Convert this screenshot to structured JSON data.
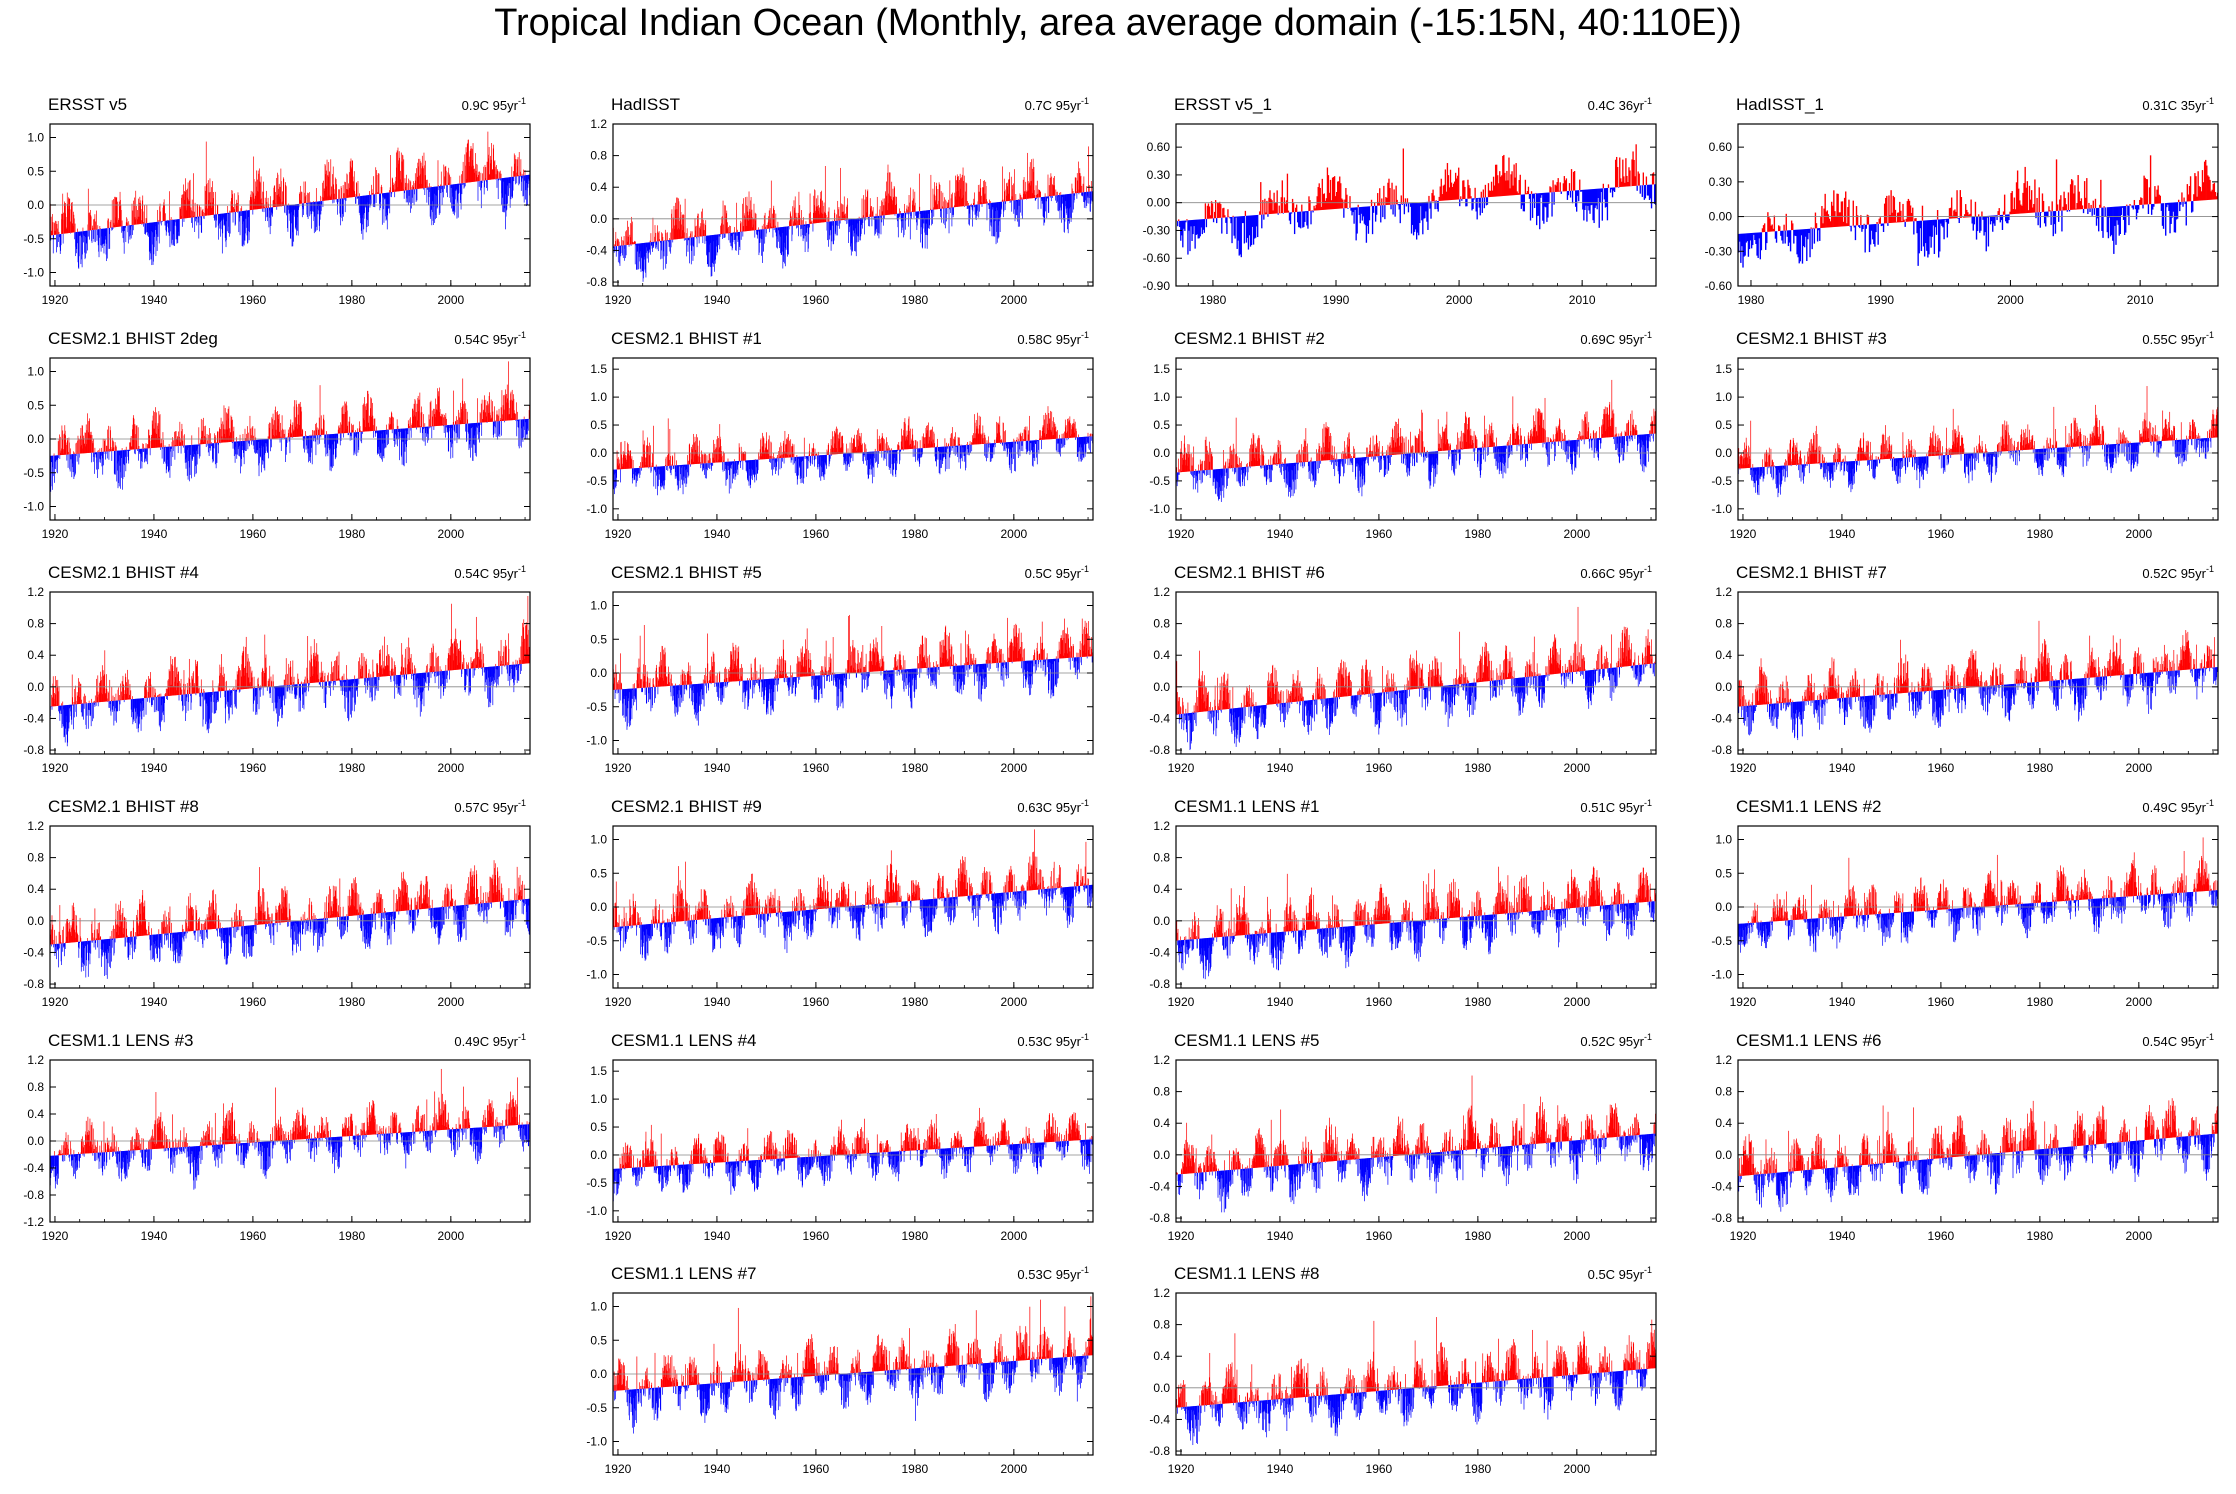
{
  "title": "Tropical Indian Ocean (Monthly, area average domain (-15:15N, 40:110E))",
  "colors": {
    "positive": "#ff0000",
    "negative": "#0000ff",
    "reference": "#000000",
    "frame": "#000000"
  },
  "chart_data": [
    {
      "type": "bar",
      "name": "ERSST v5",
      "trend": "0.9C 95yr",
      "x_range": [
        1919,
        2016
      ],
      "ylim": [
        -1.2,
        1.2
      ],
      "yticks": [
        -1.0,
        -0.5,
        0.0,
        0.5,
        1.0
      ],
      "ytick_labels": [
        "-1.0",
        "-0.5",
        "0.0",
        "0.5",
        "1.0"
      ],
      "xticks": [
        1920,
        1940,
        1960,
        1980,
        2000
      ],
      "trend_line": [
        -0.45,
        0.45
      ],
      "amplitude": 0.5,
      "seed": 1
    },
    {
      "type": "bar",
      "name": "HadISST",
      "trend": "0.7C 95yr",
      "x_range": [
        1919,
        2016
      ],
      "ylim": [
        -0.85,
        1.2
      ],
      "yticks": [
        -0.8,
        -0.4,
        0.0,
        0.4,
        0.8,
        1.2
      ],
      "ytick_labels": [
        "-0.8",
        "-0.4",
        "0.0",
        "0.4",
        "0.8",
        "1.2"
      ],
      "xticks": [
        1920,
        1940,
        1960,
        1980,
        2000
      ],
      "trend_line": [
        -0.35,
        0.35
      ],
      "amplitude": 0.4,
      "seed": 2
    },
    {
      "type": "bar",
      "name": "ERSST v5_1",
      "trend": "0.4C 36yr",
      "x_range": [
        1977,
        2016
      ],
      "ylim": [
        -0.9,
        0.85
      ],
      "yticks": [
        -0.9,
        -0.6,
        -0.3,
        0.0,
        0.3,
        0.6
      ],
      "ytick_labels": [
        "-0.90",
        "-0.60",
        "-0.30",
        "0.00",
        "0.30",
        "0.60"
      ],
      "xticks": [
        1980,
        1990,
        2000,
        2010
      ],
      "trend_line": [
        -0.2,
        0.2
      ],
      "amplitude": 0.35,
      "seed": 3
    },
    {
      "type": "bar",
      "name": "HadISST_1",
      "trend": "0.31C 35yr",
      "x_range": [
        1979,
        2016
      ],
      "ylim": [
        -0.6,
        0.8
      ],
      "yticks": [
        -0.6,
        -0.3,
        0.0,
        0.3,
        0.6
      ],
      "ytick_labels": [
        "-0.60",
        "-0.30",
        "0.00",
        "0.30",
        "0.60"
      ],
      "xticks": [
        1980,
        1990,
        2000,
        2010
      ],
      "trend_line": [
        -0.15,
        0.15
      ],
      "amplitude": 0.3,
      "seed": 4
    },
    {
      "type": "bar",
      "name": "CESM2.1 BHIST 2deg",
      "trend": "0.54C 95yr",
      "x_range": [
        1919,
        2016
      ],
      "ylim": [
        -1.2,
        1.2
      ],
      "yticks": [
        -1.0,
        -0.5,
        0.0,
        0.5,
        1.0
      ],
      "ytick_labels": [
        "-1.0",
        "-0.5",
        "0.0",
        "0.5",
        "1.0"
      ],
      "xticks": [
        1920,
        1940,
        1960,
        1980,
        2000
      ],
      "trend_line": [
        -0.25,
        0.3
      ],
      "amplitude": 0.45,
      "seed": 5
    },
    {
      "type": "bar",
      "name": "CESM2.1 BHIST #1",
      "trend": "0.58C 95yr",
      "x_range": [
        1919,
        2016
      ],
      "ylim": [
        -1.2,
        1.7
      ],
      "yticks": [
        -1.0,
        -0.5,
        0.0,
        0.5,
        1.0,
        1.5
      ],
      "ytick_labels": [
        "-1.0",
        "-0.5",
        "0.0",
        "0.5",
        "1.0",
        "1.5"
      ],
      "xticks": [
        1920,
        1940,
        1960,
        1980,
        2000
      ],
      "trend_line": [
        -0.3,
        0.3
      ],
      "amplitude": 0.45,
      "seed": 6
    },
    {
      "type": "bar",
      "name": "CESM2.1 BHIST #2",
      "trend": "0.69C 95yr",
      "x_range": [
        1919,
        2016
      ],
      "ylim": [
        -1.2,
        1.7
      ],
      "yticks": [
        -1.0,
        -0.5,
        0.0,
        0.5,
        1.0,
        1.5
      ],
      "ytick_labels": [
        "-1.0",
        "-0.5",
        "0.0",
        "0.5",
        "1.0",
        "1.5"
      ],
      "xticks": [
        1920,
        1940,
        1960,
        1980,
        2000
      ],
      "trend_line": [
        -0.35,
        0.35
      ],
      "amplitude": 0.5,
      "seed": 7
    },
    {
      "type": "bar",
      "name": "CESM2.1 BHIST #3",
      "trend": "0.55C 95yr",
      "x_range": [
        1919,
        2016
      ],
      "ylim": [
        -1.2,
        1.7
      ],
      "yticks": [
        -1.0,
        -0.5,
        0.0,
        0.5,
        1.0,
        1.5
      ],
      "ytick_labels": [
        "-1.0",
        "-0.5",
        "0.0",
        "0.5",
        "1.0",
        "1.5"
      ],
      "xticks": [
        1920,
        1940,
        1960,
        1980,
        2000
      ],
      "trend_line": [
        -0.28,
        0.28
      ],
      "amplitude": 0.45,
      "seed": 8
    },
    {
      "type": "bar",
      "name": "CESM2.1 BHIST #4",
      "trend": "0.54C 95yr",
      "x_range": [
        1919,
        2016
      ],
      "ylim": [
        -0.85,
        1.2
      ],
      "yticks": [
        -0.8,
        -0.4,
        0.0,
        0.4,
        0.8,
        1.2
      ],
      "ytick_labels": [
        "-0.8",
        "-0.4",
        "0.0",
        "0.4",
        "0.8",
        "1.2"
      ],
      "xticks": [
        1920,
        1940,
        1960,
        1980,
        2000
      ],
      "trend_line": [
        -0.25,
        0.3
      ],
      "amplitude": 0.4,
      "seed": 9
    },
    {
      "type": "bar",
      "name": "CESM2.1 BHIST #5",
      "trend": "0.5C 95yr",
      "x_range": [
        1919,
        2016
      ],
      "ylim": [
        -1.2,
        1.2
      ],
      "yticks": [
        -1.0,
        -0.5,
        0.0,
        0.5,
        1.0
      ],
      "ytick_labels": [
        "-1.0",
        "-0.5",
        "0.0",
        "0.5",
        "1.0"
      ],
      "xticks": [
        1920,
        1940,
        1960,
        1980,
        2000
      ],
      "trend_line": [
        -0.25,
        0.25
      ],
      "amplitude": 0.45,
      "seed": 10
    },
    {
      "type": "bar",
      "name": "CESM2.1 BHIST #6",
      "trend": "0.66C 95yr",
      "x_range": [
        1919,
        2016
      ],
      "ylim": [
        -0.85,
        1.2
      ],
      "yticks": [
        -0.8,
        -0.4,
        0.0,
        0.4,
        0.8,
        1.2
      ],
      "ytick_labels": [
        "-0.8",
        "-0.4",
        "0.0",
        "0.4",
        "0.8",
        "1.2"
      ],
      "xticks": [
        1920,
        1940,
        1960,
        1980,
        2000
      ],
      "trend_line": [
        -0.35,
        0.3
      ],
      "amplitude": 0.4,
      "seed": 11
    },
    {
      "type": "bar",
      "name": "CESM2.1 BHIST #7",
      "trend": "0.52C 95yr",
      "x_range": [
        1919,
        2016
      ],
      "ylim": [
        -0.85,
        1.2
      ],
      "yticks": [
        -0.8,
        -0.4,
        0.0,
        0.4,
        0.8,
        1.2
      ],
      "ytick_labels": [
        "-0.8",
        "-0.4",
        "0.0",
        "0.4",
        "0.8",
        "1.2"
      ],
      "xticks": [
        1920,
        1940,
        1960,
        1980,
        2000
      ],
      "trend_line": [
        -0.25,
        0.25
      ],
      "amplitude": 0.4,
      "seed": 12
    },
    {
      "type": "bar",
      "name": "CESM2.1 BHIST #8",
      "trend": "0.57C 95yr",
      "x_range": [
        1919,
        2016
      ],
      "ylim": [
        -0.85,
        1.2
      ],
      "yticks": [
        -0.8,
        -0.4,
        0.0,
        0.4,
        0.8,
        1.2
      ],
      "ytick_labels": [
        "-0.8",
        "-0.4",
        "0.0",
        "0.4",
        "0.8",
        "1.2"
      ],
      "xticks": [
        1920,
        1940,
        1960,
        1980,
        2000
      ],
      "trend_line": [
        -0.3,
        0.28
      ],
      "amplitude": 0.4,
      "seed": 13
    },
    {
      "type": "bar",
      "name": "CESM2.1 BHIST #9",
      "trend": "0.63C 95yr",
      "x_range": [
        1919,
        2016
      ],
      "ylim": [
        -1.2,
        1.2
      ],
      "yticks": [
        -1.0,
        -0.5,
        0.0,
        0.5,
        1.0
      ],
      "ytick_labels": [
        "-1.0",
        "-0.5",
        "0.0",
        "0.5",
        "1.0"
      ],
      "xticks": [
        1920,
        1940,
        1960,
        1980,
        2000
      ],
      "trend_line": [
        -0.3,
        0.33
      ],
      "amplitude": 0.45,
      "seed": 14
    },
    {
      "type": "bar",
      "name": "CESM1.1 LENS #1",
      "trend": "0.51C 95yr",
      "x_range": [
        1919,
        2016
      ],
      "ylim": [
        -0.85,
        1.2
      ],
      "yticks": [
        -0.8,
        -0.4,
        0.0,
        0.4,
        0.8,
        1.2
      ],
      "ytick_labels": [
        "-0.8",
        "-0.4",
        "0.0",
        "0.4",
        "0.8",
        "1.2"
      ],
      "xticks": [
        1920,
        1940,
        1960,
        1980,
        2000
      ],
      "trend_line": [
        -0.25,
        0.25
      ],
      "amplitude": 0.4,
      "seed": 15
    },
    {
      "type": "bar",
      "name": "CESM1.1 LENS #2",
      "trend": "0.49C 95yr",
      "x_range": [
        1919,
        2016
      ],
      "ylim": [
        -1.2,
        1.2
      ],
      "yticks": [
        -1.0,
        -0.5,
        0.0,
        0.5,
        1.0
      ],
      "ytick_labels": [
        "-1.0",
        "-0.5",
        "0.0",
        "0.5",
        "1.0"
      ],
      "xticks": [
        1920,
        1940,
        1960,
        1980,
        2000
      ],
      "trend_line": [
        -0.25,
        0.25
      ],
      "amplitude": 0.4,
      "seed": 16
    },
    {
      "type": "bar",
      "name": "CESM1.1 LENS #3",
      "trend": "0.49C 95yr",
      "x_range": [
        1919,
        2016
      ],
      "ylim": [
        -1.2,
        1.2
      ],
      "yticks": [
        -1.2,
        -0.8,
        -0.4,
        0.0,
        0.4,
        0.8,
        1.2
      ],
      "ytick_labels": [
        "-1.2",
        "-0.8",
        "-0.4",
        "0.0",
        "0.4",
        "0.8",
        "1.2"
      ],
      "xticks": [
        1920,
        1940,
        1960,
        1980,
        2000
      ],
      "trend_line": [
        -0.22,
        0.25
      ],
      "amplitude": 0.4,
      "seed": 17
    },
    {
      "type": "bar",
      "name": "CESM1.1 LENS #4",
      "trend": "0.53C 95yr",
      "x_range": [
        1919,
        2016
      ],
      "ylim": [
        -1.2,
        1.7
      ],
      "yticks": [
        -1.0,
        -0.5,
        0.0,
        0.5,
        1.0,
        1.5
      ],
      "ytick_labels": [
        "-1.0",
        "-0.5",
        "0.0",
        "0.5",
        "1.0",
        "1.5"
      ],
      "xticks": [
        1920,
        1940,
        1960,
        1980,
        2000
      ],
      "trend_line": [
        -0.25,
        0.28
      ],
      "amplitude": 0.45,
      "seed": 18
    },
    {
      "type": "bar",
      "name": "CESM1.1 LENS #5",
      "trend": "0.52C 95yr",
      "x_range": [
        1919,
        2016
      ],
      "ylim": [
        -0.85,
        1.2
      ],
      "yticks": [
        -0.8,
        -0.4,
        0.0,
        0.4,
        0.8,
        1.2
      ],
      "ytick_labels": [
        "-0.8",
        "-0.4",
        "0.0",
        "0.4",
        "0.8",
        "1.2"
      ],
      "xticks": [
        1920,
        1940,
        1960,
        1980,
        2000
      ],
      "trend_line": [
        -0.25,
        0.27
      ],
      "amplitude": 0.4,
      "seed": 19
    },
    {
      "type": "bar",
      "name": "CESM1.1 LENS #6",
      "trend": "0.54C 95yr",
      "x_range": [
        1919,
        2016
      ],
      "ylim": [
        -0.85,
        1.2
      ],
      "yticks": [
        -0.8,
        -0.4,
        0.0,
        0.4,
        0.8,
        1.2
      ],
      "ytick_labels": [
        "-0.8",
        "-0.4",
        "0.0",
        "0.4",
        "0.8",
        "1.2"
      ],
      "xticks": [
        1920,
        1940,
        1960,
        1980,
        2000
      ],
      "trend_line": [
        -0.27,
        0.27
      ],
      "amplitude": 0.4,
      "seed": 20
    },
    {
      "type": "bar",
      "name": "CESM1.1 LENS #7",
      "trend": "0.53C 95yr",
      "x_range": [
        1919,
        2016
      ],
      "ylim": [
        -1.2,
        1.2
      ],
      "yticks": [
        -1.0,
        -0.5,
        0.0,
        0.5,
        1.0
      ],
      "ytick_labels": [
        "-1.0",
        "-0.5",
        "0.0",
        "0.5",
        "1.0"
      ],
      "xticks": [
        1920,
        1940,
        1960,
        1980,
        2000
      ],
      "trend_line": [
        -0.25,
        0.28
      ],
      "amplitude": 0.45,
      "seed": 21
    },
    {
      "type": "bar",
      "name": "CESM1.1 LENS #8",
      "trend": "0.5C 95yr",
      "x_range": [
        1919,
        2016
      ],
      "ylim": [
        -0.85,
        1.2
      ],
      "yticks": [
        -0.8,
        -0.4,
        0.0,
        0.4,
        0.8,
        1.2
      ],
      "ytick_labels": [
        "-0.8",
        "-0.4",
        "0.0",
        "0.4",
        "0.8",
        "1.2"
      ],
      "xticks": [
        1920,
        1940,
        1960,
        1980,
        2000
      ],
      "trend_line": [
        -0.25,
        0.25
      ],
      "amplitude": 0.4,
      "seed": 22
    }
  ]
}
